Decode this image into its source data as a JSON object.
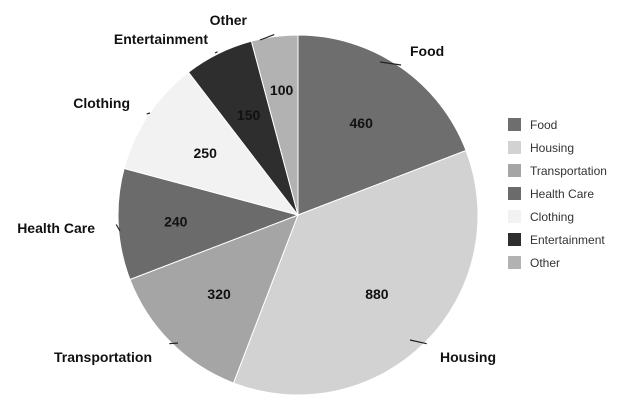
{
  "chart_data": {
    "type": "pie",
    "categories": [
      "Food",
      "Housing",
      "Transportation",
      "Health Care",
      "Clothing",
      "Entertainment",
      "Other"
    ],
    "values": [
      460,
      880,
      320,
      240,
      250,
      150,
      100
    ],
    "colors": [
      "#6e6e6e",
      "#d2d2d2",
      "#a5a5a5",
      "#6b6b6b",
      "#f2f2f2",
      "#2e2e2e",
      "#b2b2b2"
    ],
    "start_angle_deg": 0,
    "direction": "clockwise",
    "legend": {
      "position": "right",
      "entries": [
        "Food",
        "Housing",
        "Transportation",
        "Health Care",
        "Clothing",
        "Entertainment",
        "Other"
      ]
    },
    "title": "",
    "data_labels": [
      "460",
      "880",
      "320",
      "240",
      "250",
      "150",
      "100"
    ]
  }
}
